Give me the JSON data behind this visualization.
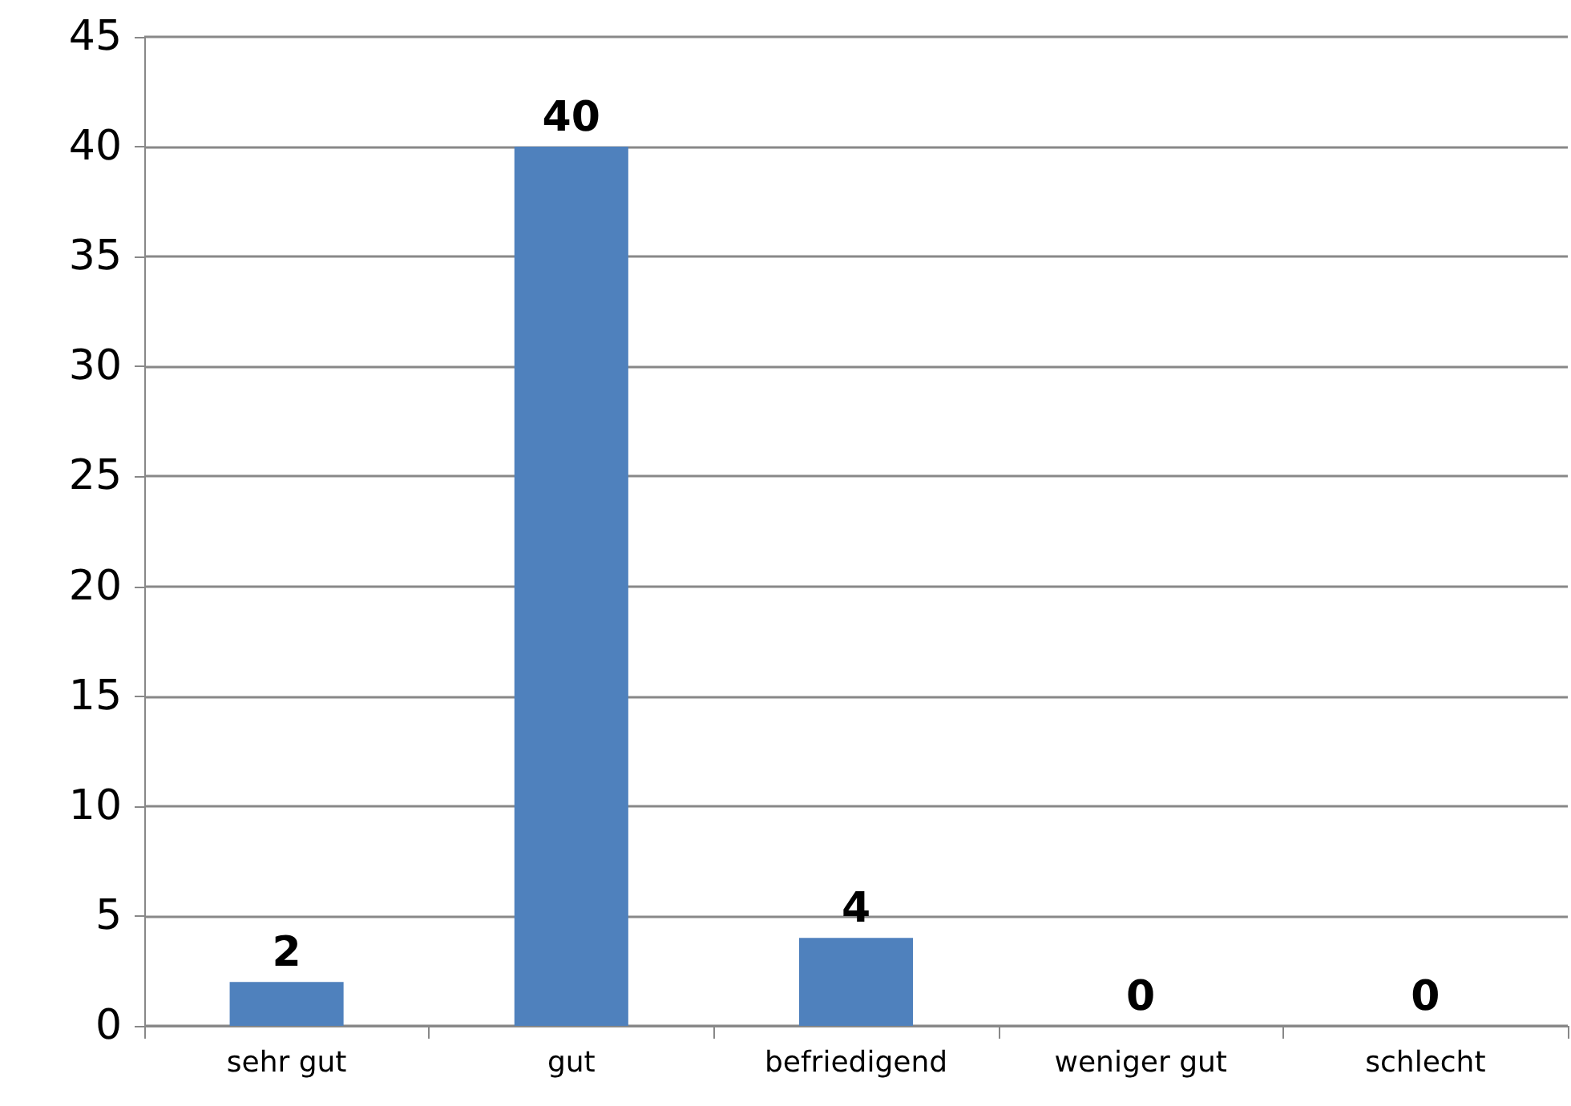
{
  "chart_data": {
    "type": "bar",
    "categories": [
      "sehr gut",
      "gut",
      "befriedigend",
      "weniger gut",
      "schlecht"
    ],
    "values": [
      2,
      40,
      4,
      0,
      0
    ],
    "color": "#4f81bd",
    "ylim": [
      0,
      45
    ],
    "yticks": [
      0,
      5,
      10,
      15,
      20,
      25,
      30,
      35,
      40,
      45
    ],
    "grid": "y",
    "data_labels": true
  }
}
